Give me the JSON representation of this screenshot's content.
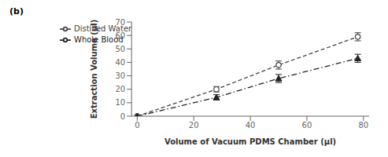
{
  "chart_data": {
    "type": "line",
    "title": "(b)",
    "xlabel": "Volume of Vacuum PDMS Chamber (μl)",
    "ylabel": "Extraction Volume (μl)",
    "xlim": [
      -2,
      82
    ],
    "ylim": [
      0,
      70
    ],
    "xticks": [
      0,
      20,
      40,
      60,
      80
    ],
    "yticks": [
      0,
      10,
      20,
      30,
      40,
      50,
      60,
      70
    ],
    "grid": false,
    "legend": "upper left",
    "x": [
      0,
      28,
      50,
      78
    ],
    "series": [
      {
        "name": "Distilled Water",
        "color": "#444444",
        "marker": "open_circle",
        "line_style": "dashed",
        "values": [
          0,
          20,
          38,
          59
        ],
        "errors": [
          0,
          2,
          3,
          3
        ]
      },
      {
        "name": "Whole Blood",
        "color": "#222222",
        "marker": "triangle",
        "line_style": "dashdot",
        "values": [
          0,
          14,
          28,
          43
        ],
        "errors": [
          0,
          2,
          3,
          3
        ]
      }
    ]
  }
}
